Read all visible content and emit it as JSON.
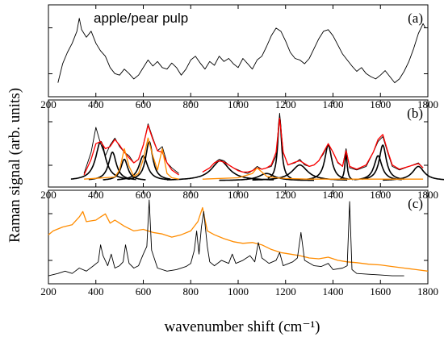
{
  "chart_data": {
    "type": "line",
    "xlabel": "wavenumber shift (cm⁻¹)",
    "ylabel": "Raman signal (arb. units)",
    "xlim": [
      200,
      1800
    ],
    "xticks": [
      200,
      400,
      600,
      800,
      1000,
      1200,
      1400,
      1600,
      1800
    ],
    "grid": false,
    "panels": [
      {
        "tag": "(a)",
        "title": "apple/pear pulp",
        "series": [
          {
            "color": "#000000",
            "x": [
              240,
              260,
              280,
              300,
              320,
              330,
              340,
              360,
              380,
              400,
              420,
              440,
              460,
              480,
              500,
              520,
              540,
              560,
              580,
              600,
              620,
              640,
              660,
              680,
              700,
              720,
              740,
              760,
              780,
              800,
              820,
              840,
              860,
              880,
              900,
              920,
              940,
              960,
              980,
              1000,
              1020,
              1040,
              1060,
              1080,
              1100,
              1120,
              1140,
              1160,
              1180,
              1200,
              1220,
              1240,
              1260,
              1280,
              1300,
              1320,
              1340,
              1360,
              1380,
              1400,
              1420,
              1440,
              1460,
              1480,
              1500,
              1520,
              1540,
              1560,
              1580,
              1600,
              1620,
              1640,
              1660,
              1680,
              1700,
              1720,
              1740,
              1760,
              1780,
              1790
            ],
            "y": [
              0.1,
              0.35,
              0.5,
              0.62,
              0.78,
              0.95,
              0.8,
              0.7,
              0.78,
              0.62,
              0.52,
              0.45,
              0.3,
              0.22,
              0.2,
              0.28,
              0.22,
              0.15,
              0.2,
              0.3,
              0.4,
              0.32,
              0.38,
              0.3,
              0.28,
              0.36,
              0.3,
              0.2,
              0.28,
              0.4,
              0.45,
              0.36,
              0.28,
              0.38,
              0.33,
              0.45,
              0.38,
              0.42,
              0.35,
              0.3,
              0.42,
              0.35,
              0.28,
              0.4,
              0.45,
              0.58,
              0.72,
              0.82,
              0.78,
              0.65,
              0.5,
              0.42,
              0.4,
              0.35,
              0.42,
              0.55,
              0.68,
              0.78,
              0.8,
              0.72,
              0.6,
              0.48,
              0.4,
              0.32,
              0.25,
              0.3,
              0.22,
              0.18,
              0.15,
              0.2,
              0.26,
              0.18,
              0.1,
              0.15,
              0.25,
              0.38,
              0.55,
              0.75,
              0.88,
              0.82
            ]
          }
        ]
      },
      {
        "tag": "(b)",
        "title": "",
        "series": [
          {
            "color": "#000000",
            "x": [
              350,
              380,
              400,
              420,
              440,
              460,
              480,
              500,
              520,
              540,
              560,
              580,
              600,
              620,
              640,
              660,
              680,
              700,
              720,
              750
            ],
            "y": [
              0.1,
              0.4,
              0.75,
              0.52,
              0.35,
              0.5,
              0.6,
              0.48,
              0.4,
              0.35,
              0.25,
              0.3,
              0.5,
              0.8,
              0.6,
              0.42,
              0.48,
              0.25,
              0.18,
              0.1
            ]
          },
          {
            "color": "#000000",
            "x": [
              850,
              880,
              900,
              920,
              940,
              960,
              980,
              1000,
              1020,
              1040,
              1060,
              1080,
              1100,
              1120,
              1140,
              1160,
              1175,
              1190,
              1210,
              1240,
              1260,
              1280,
              1300,
              1320,
              1340,
              1360,
              1380,
              1400,
              1420,
              1440,
              1455,
              1470,
              1500,
              1540,
              1570,
              1590,
              1610,
              1630,
              1650,
              1680,
              1720,
              1760,
              1780
            ],
            "y": [
              0.12,
              0.18,
              0.25,
              0.3,
              0.28,
              0.22,
              0.18,
              0.15,
              0.12,
              0.1,
              0.14,
              0.2,
              0.16,
              0.18,
              0.2,
              0.35,
              0.95,
              0.4,
              0.22,
              0.25,
              0.3,
              0.22,
              0.2,
              0.22,
              0.28,
              0.38,
              0.52,
              0.4,
              0.25,
              0.2,
              0.45,
              0.18,
              0.15,
              0.2,
              0.4,
              0.55,
              0.62,
              0.4,
              0.2,
              0.15,
              0.2,
              0.25,
              0.18
            ]
          },
          {
            "color": "#ff0000",
            "x": [
              350,
              380,
              400,
              420,
              440,
              460,
              480,
              500,
              520,
              540,
              560,
              580,
              600,
              620,
              640,
              660,
              680,
              700,
              720,
              750
            ],
            "y": [
              0.08,
              0.3,
              0.52,
              0.55,
              0.45,
              0.48,
              0.58,
              0.5,
              0.4,
              0.32,
              0.25,
              0.3,
              0.5,
              0.78,
              0.58,
              0.42,
              0.4,
              0.25,
              0.15,
              0.08
            ]
          },
          {
            "color": "#ff0000",
            "x": [
              850,
              880,
              900,
              920,
              940,
              960,
              980,
              1000,
              1020,
              1040,
              1060,
              1080,
              1100,
              1120,
              1140,
              1160,
              1175,
              1190,
              1210,
              1240,
              1260,
              1280,
              1300,
              1320,
              1340,
              1360,
              1380,
              1400,
              1420,
              1440,
              1455,
              1470,
              1500,
              1540,
              1570,
              1590,
              1610,
              1630,
              1650,
              1680,
              1720,
              1760,
              1780
            ],
            "y": [
              0.12,
              0.18,
              0.25,
              0.28,
              0.26,
              0.22,
              0.18,
              0.14,
              0.12,
              0.12,
              0.14,
              0.18,
              0.16,
              0.18,
              0.22,
              0.4,
              0.88,
              0.4,
              0.22,
              0.26,
              0.28,
              0.24,
              0.2,
              0.22,
              0.28,
              0.4,
              0.52,
              0.4,
              0.26,
              0.2,
              0.42,
              0.2,
              0.16,
              0.22,
              0.4,
              0.58,
              0.65,
              0.42,
              0.22,
              0.16,
              0.2,
              0.24,
              0.18
            ]
          },
          {
            "color": "#ff8c00",
            "x": [
              350,
              480,
              500,
              520,
              540,
              560,
              580,
              600,
              620,
              640,
              660,
              680,
              700,
              720,
              750
            ],
            "y": [
              0.02,
              0.05,
              0.15,
              0.45,
              0.2,
              0.06,
              0.1,
              0.3,
              0.6,
              0.35,
              0.15,
              0.45,
              0.1,
              0.04,
              0.02
            ]
          },
          {
            "color": "#ff8c00",
            "x": [
              850,
              1000,
              1060,
              1080,
              1100,
              1120,
              1160,
              1200,
              1300,
              1500,
              1780
            ],
            "y": [
              0.02,
              0.04,
              0.1,
              0.18,
              0.12,
              0.06,
              0.04,
              0.03,
              0.02,
              0.02,
              0.02
            ]
          }
        ],
        "lorentz_fits": {
          "color": "#000000",
          "peaks": [
            {
              "center": 420,
              "height": 0.55,
              "width": 25
            },
            {
              "center": 470,
              "height": 0.4,
              "width": 20
            },
            {
              "center": 520,
              "height": 0.3,
              "width": 18
            },
            {
              "center": 600,
              "height": 0.35,
              "width": 22
            },
            {
              "center": 625,
              "height": 0.55,
              "width": 18
            },
            {
              "center": 925,
              "height": 0.28,
              "width": 45
            },
            {
              "center": 1120,
              "height": 0.1,
              "width": 40
            },
            {
              "center": 1175,
              "height": 0.88,
              "width": 10
            },
            {
              "center": 1260,
              "height": 0.22,
              "width": 40
            },
            {
              "center": 1380,
              "height": 0.5,
              "width": 18
            },
            {
              "center": 1455,
              "height": 0.38,
              "width": 6
            },
            {
              "center": 1590,
              "height": 0.35,
              "width": 20
            },
            {
              "center": 1610,
              "height": 0.5,
              "width": 18
            },
            {
              "center": 1760,
              "height": 0.2,
              "width": 30
            }
          ]
        }
      },
      {
        "tag": "(c)",
        "title": "",
        "series": [
          {
            "color": "#ff8c00",
            "x": [
              200,
              220,
              260,
              300,
              330,
              345,
              360,
              400,
              420,
              440,
              460,
              480,
              520,
              560,
              600,
              640,
              680,
              720,
              760,
              800,
              830,
              850,
              870,
              900,
              940,
              980,
              1020,
              1060,
              1100,
              1140,
              1180,
              1220,
              1260,
              1300,
              1340,
              1380,
              1420,
              1460,
              1500,
              1550,
              1600,
              1650,
              1700,
              1750,
              1800
            ],
            "y": [
              0.55,
              0.6,
              0.65,
              0.68,
              0.78,
              0.85,
              0.72,
              0.74,
              0.78,
              0.82,
              0.7,
              0.74,
              0.66,
              0.6,
              0.62,
              0.58,
              0.56,
              0.52,
              0.55,
              0.6,
              0.72,
              0.9,
              0.6,
              0.55,
              0.5,
              0.46,
              0.44,
              0.45,
              0.42,
              0.36,
              0.32,
              0.3,
              0.28,
              0.25,
              0.24,
              0.26,
              0.22,
              0.2,
              0.19,
              0.17,
              0.16,
              0.14,
              0.12,
              0.1,
              0.08
            ]
          },
          {
            "color": "#000000",
            "x": [
              200,
              240,
              270,
              300,
              330,
              360,
              390,
              410,
              420,
              430,
              450,
              465,
              480,
              500,
              515,
              525,
              540,
              560,
              580,
              600,
              615,
              625,
              635,
              660,
              700,
              740,
              780,
              800,
              815,
              825,
              835,
              845,
              855,
              870,
              880,
              900,
              930,
              960,
              975,
              990,
              1020,
              1050,
              1070,
              1085,
              1100,
              1130,
              1160,
              1175,
              1190,
              1230,
              1250,
              1265,
              1280,
              1320,
              1350,
              1380,
              1400,
              1440,
              1460,
              1470,
              1480,
              1500,
              1550,
              1600,
              1650,
              1700
            ],
            "y": [
              0.02,
              0.05,
              0.08,
              0.05,
              0.12,
              0.08,
              0.15,
              0.2,
              0.42,
              0.28,
              0.15,
              0.3,
              0.12,
              0.15,
              0.2,
              0.42,
              0.18,
              0.12,
              0.15,
              0.3,
              0.4,
              1.0,
              0.35,
              0.12,
              0.08,
              0.1,
              0.14,
              0.18,
              0.35,
              0.6,
              0.3,
              0.65,
              0.85,
              0.4,
              0.2,
              0.15,
              0.22,
              0.18,
              0.3,
              0.18,
              0.22,
              0.28,
              0.2,
              0.45,
              0.25,
              0.18,
              0.22,
              0.32,
              0.15,
              0.2,
              0.25,
              0.58,
              0.22,
              0.15,
              0.14,
              0.18,
              0.1,
              0.12,
              0.15,
              0.98,
              0.1,
              0.05,
              0.04,
              0.03,
              0.02,
              0.02
            ]
          }
        ]
      }
    ]
  }
}
